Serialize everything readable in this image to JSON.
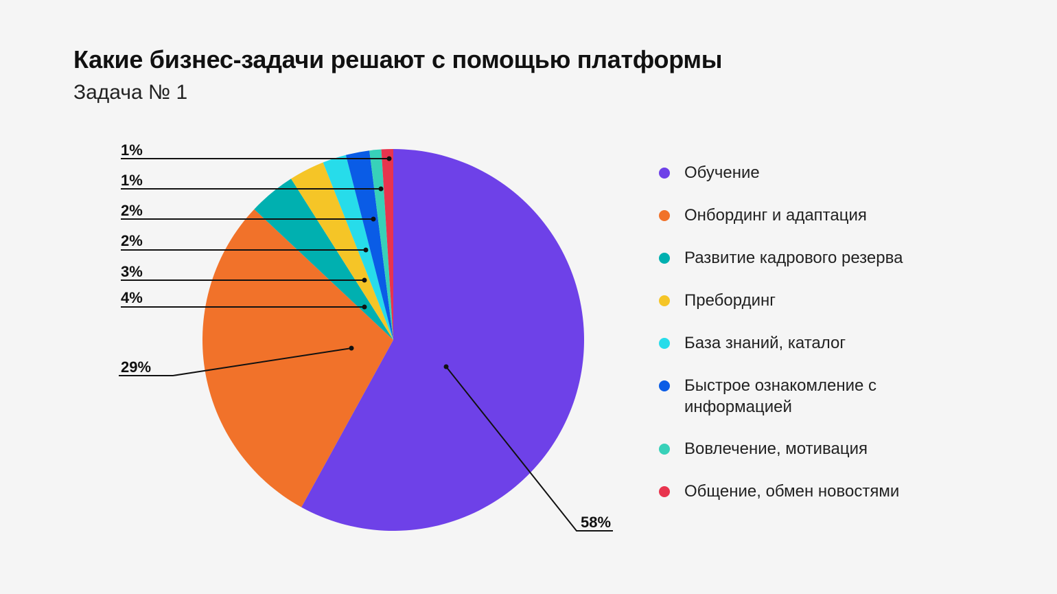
{
  "title": "Какие бизнес-задачи решают с помощью платформы",
  "subtitle": "Задача № 1",
  "chart_data": {
    "type": "pie",
    "title": "Какие бизнес-задачи решают с помощью платформы",
    "subtitle": "Задача № 1",
    "start": "top, clockwise",
    "legend_position": "right",
    "categories": [
      "Обучение",
      "Онбординг и адаптация",
      "Развитие кадрового резерва",
      "Пребординг",
      "База знаний, каталог",
      "Быстрое ознакомление с информацией",
      "Вовлечение, мотивация",
      "Общение, обмен новостями"
    ],
    "values": [
      58,
      29,
      4,
      3,
      2,
      2,
      1,
      1
    ],
    "labels": [
      "58%",
      "29%",
      "4%",
      "3%",
      "2%",
      "2%",
      "1%",
      "1%"
    ],
    "colors": [
      "#6e41e8",
      "#f1722a",
      "#00b0b0",
      "#f5c527",
      "#27dcea",
      "#0a5ce6",
      "#38d1b9",
      "#e8344e"
    ]
  }
}
